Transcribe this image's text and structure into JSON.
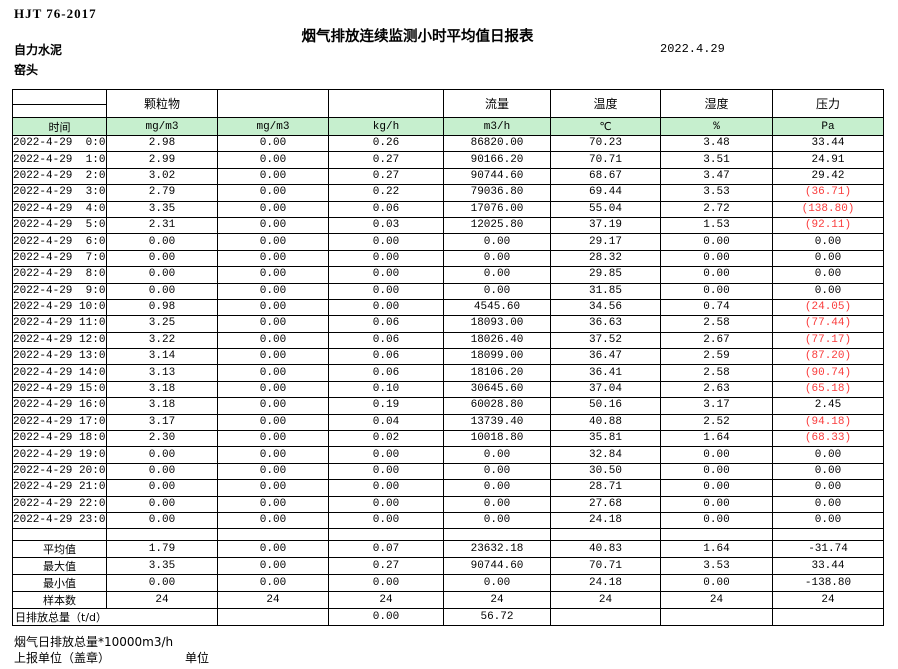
{
  "header": {
    "standard": "HJT  76-2017",
    "title": "烟气排放连续监测小时平均值日报表",
    "company": "自力水泥",
    "station": "窑头",
    "date": "2022.4.29"
  },
  "table": {
    "group_headers": [
      "",
      "颗粒物",
      "",
      "",
      "流量",
      "温度",
      "湿度",
      "压力"
    ],
    "unit_row": [
      "时间",
      "mg/m3",
      "mg/m3",
      "kg/h",
      "m3/h",
      "℃",
      "%",
      "Pa"
    ],
    "rows": [
      [
        "2022-4-29  0:00",
        "2.98",
        "0.00",
        "0.26",
        "86820.00",
        "70.23",
        "3.48",
        "33.44"
      ],
      [
        "2022-4-29  1:00",
        "2.99",
        "0.00",
        "0.27",
        "90166.20",
        "70.71",
        "3.51",
        "24.91"
      ],
      [
        "2022-4-29  2:00",
        "3.02",
        "0.00",
        "0.27",
        "90744.60",
        "68.67",
        "3.47",
        "29.42"
      ],
      [
        "2022-4-29  3:00",
        "2.79",
        "0.00",
        "0.22",
        "79036.80",
        "69.44",
        "3.53",
        "(36.71)"
      ],
      [
        "2022-4-29  4:00",
        "3.35",
        "0.00",
        "0.06",
        "17076.00",
        "55.04",
        "2.72",
        "(138.80)"
      ],
      [
        "2022-4-29  5:00",
        "2.31",
        "0.00",
        "0.03",
        "12025.80",
        "37.19",
        "1.53",
        "(92.11)"
      ],
      [
        "2022-4-29  6:00",
        "0.00",
        "0.00",
        "0.00",
        "0.00",
        "29.17",
        "0.00",
        "0.00"
      ],
      [
        "2022-4-29  7:00",
        "0.00",
        "0.00",
        "0.00",
        "0.00",
        "28.32",
        "0.00",
        "0.00"
      ],
      [
        "2022-4-29  8:00",
        "0.00",
        "0.00",
        "0.00",
        "0.00",
        "29.85",
        "0.00",
        "0.00"
      ],
      [
        "2022-4-29  9:00",
        "0.00",
        "0.00",
        "0.00",
        "0.00",
        "31.85",
        "0.00",
        "0.00"
      ],
      [
        "2022-4-29 10:00",
        "0.98",
        "0.00",
        "0.00",
        "4545.60",
        "34.56",
        "0.74",
        "(24.05)"
      ],
      [
        "2022-4-29 11:00",
        "3.25",
        "0.00",
        "0.06",
        "18093.00",
        "36.63",
        "2.58",
        "(77.44)"
      ],
      [
        "2022-4-29 12:00",
        "3.22",
        "0.00",
        "0.06",
        "18026.40",
        "37.52",
        "2.67",
        "(77.17)"
      ],
      [
        "2022-4-29 13:00",
        "3.14",
        "0.00",
        "0.06",
        "18099.00",
        "36.47",
        "2.59",
        "(87.20)"
      ],
      [
        "2022-4-29 14:00",
        "3.13",
        "0.00",
        "0.06",
        "18106.20",
        "36.41",
        "2.58",
        "(90.74)"
      ],
      [
        "2022-4-29 15:00",
        "3.18",
        "0.00",
        "0.10",
        "30645.60",
        "37.04",
        "2.63",
        "(65.18)"
      ],
      [
        "2022-4-29 16:00",
        "3.18",
        "0.00",
        "0.19",
        "60028.80",
        "50.16",
        "3.17",
        "2.45"
      ],
      [
        "2022-4-29 17:00",
        "3.17",
        "0.00",
        "0.04",
        "13739.40",
        "40.88",
        "2.52",
        "(94.18)"
      ],
      [
        "2022-4-29 18:00",
        "2.30",
        "0.00",
        "0.02",
        "10018.80",
        "35.81",
        "1.64",
        "(68.33)"
      ],
      [
        "2022-4-29 19:00",
        "0.00",
        "0.00",
        "0.00",
        "0.00",
        "32.84",
        "0.00",
        "0.00"
      ],
      [
        "2022-4-29 20:00",
        "0.00",
        "0.00",
        "0.00",
        "0.00",
        "30.50",
        "0.00",
        "0.00"
      ],
      [
        "2022-4-29 21:00",
        "0.00",
        "0.00",
        "0.00",
        "0.00",
        "28.71",
        "0.00",
        "0.00"
      ],
      [
        "2022-4-29 22:00",
        "0.00",
        "0.00",
        "0.00",
        "0.00",
        "27.68",
        "0.00",
        "0.00"
      ],
      [
        "2022-4-29 23:00",
        "0.00",
        "0.00",
        "0.00",
        "0.00",
        "24.18",
        "0.00",
        "0.00"
      ]
    ],
    "summary": [
      [
        "平均值",
        "1.79",
        "0.00",
        "0.07",
        "23632.18",
        "40.83",
        "1.64",
        "-31.74"
      ],
      [
        "最大值",
        "3.35",
        "0.00",
        "0.27",
        "90744.60",
        "70.71",
        "3.53",
        "33.44"
      ],
      [
        "最小值",
        "0.00",
        "0.00",
        "0.00",
        "0.00",
        "24.18",
        "0.00",
        "-138.80"
      ],
      [
        "样本数",
        "24",
        "24",
        "24",
        "24",
        "24",
        "24",
        "24"
      ]
    ],
    "total_row": {
      "label": "日排放总量（t/d）",
      "values": [
        "",
        "0.00",
        "56.72",
        "",
        "",
        ""
      ]
    }
  },
  "footer": {
    "note": "烟气日排放总量*10000m3/h",
    "report_unit": "上报单位（盖章）",
    "unit_label": "单位"
  },
  "colors": {
    "header_fill": "#c6efce",
    "negative_value": "#fa3c3c",
    "text": "#000000"
  }
}
